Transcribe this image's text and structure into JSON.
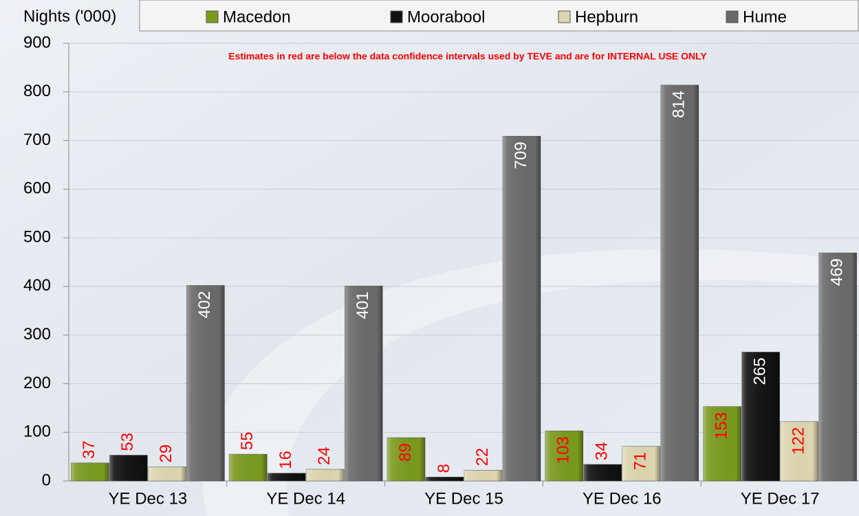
{
  "chart_data": {
    "type": "bar",
    "y_label": "Nights ('000)",
    "annotation": "Estimates in red are below the data confidence intervals used by TEVE and are for INTERNAL USE ONLY",
    "categories": [
      "YE Dec 13",
      "YE Dec 14",
      "YE Dec 15",
      "YE Dec 16",
      "YE Dec 17"
    ],
    "series": [
      {
        "name": "Macedon",
        "color": "#7a9a1e",
        "label_colors": [
          "#ff0000",
          "#ff0000",
          "#ff0000",
          "#ff0000",
          "#ff0000"
        ],
        "values": [
          37,
          55,
          89,
          103,
          153
        ]
      },
      {
        "name": "Moorabool",
        "color": "#111111",
        "label_colors": [
          "#ff0000",
          "#ff0000",
          "#ff0000",
          "#ff0000",
          "#ffffff"
        ],
        "values": [
          53,
          16,
          8,
          34,
          265
        ]
      },
      {
        "name": "Hepburn",
        "color": "#ddd6b0",
        "label_colors": [
          "#ff0000",
          "#ff0000",
          "#ff0000",
          "#ff0000",
          "#ff0000"
        ],
        "values": [
          29,
          24,
          22,
          71,
          122
        ]
      },
      {
        "name": "Hume",
        "color": "#6a6a6a",
        "label_colors": [
          "#ffffff",
          "#ffffff",
          "#ffffff",
          "#ffffff",
          "#ffffff"
        ],
        "values": [
          402,
          401,
          709,
          814,
          469
        ]
      }
    ],
    "ylim": [
      0,
      900
    ],
    "yticks": [
      0,
      100,
      200,
      300,
      400,
      500,
      600,
      700,
      800,
      900
    ]
  }
}
